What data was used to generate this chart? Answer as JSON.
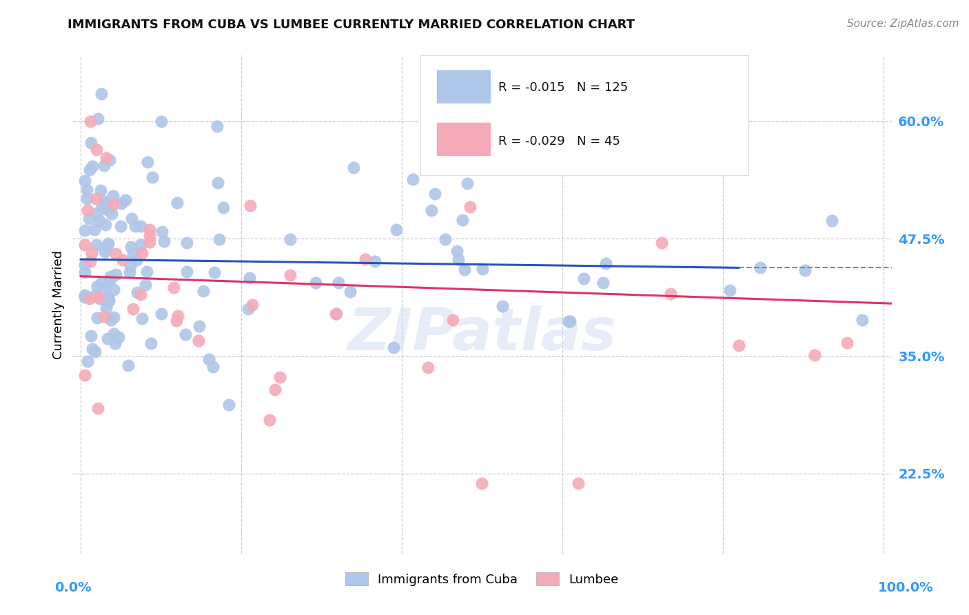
{
  "title": "IMMIGRANTS FROM CUBA VS LUMBEE CURRENTLY MARRIED CORRELATION CHART",
  "source": "Source: ZipAtlas.com",
  "ylabel": "Currently Married",
  "blue_R": "-0.015",
  "blue_N": "125",
  "pink_R": "-0.029",
  "pink_N": "45",
  "legend_labels": [
    "Immigrants from Cuba",
    "Lumbee"
  ],
  "blue_color": "#aec6e8",
  "pink_color": "#f4aab8",
  "blue_line_color": "#2255bb",
  "pink_line_color": "#dd3366",
  "grid_color": "#cccccc",
  "title_color": "#111111",
  "axis_label_color": "#3399ff",
  "watermark": "ZIPatlas",
  "yticks": [
    0.225,
    0.35,
    0.475,
    0.6
  ],
  "ytick_labels": [
    "22.5%",
    "35.0%",
    "47.5%",
    "60.0%"
  ],
  "xlim": [
    0.0,
    1.0
  ],
  "ylim": [
    0.14,
    0.67
  ]
}
